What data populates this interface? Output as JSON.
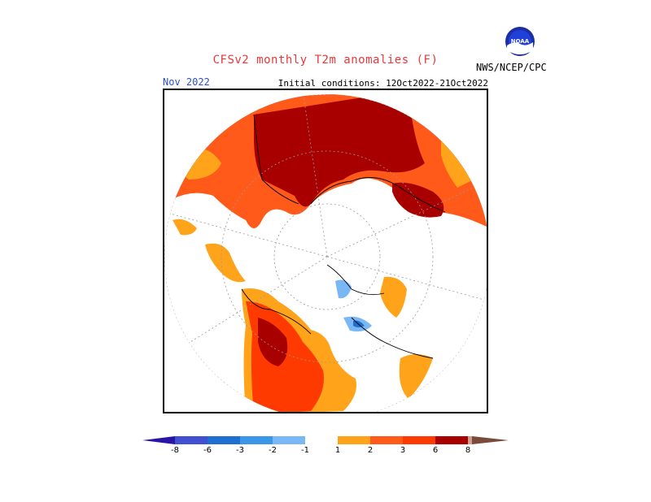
{
  "header": {
    "title": "CFSv2 monthly T2m anomalies (F)",
    "month": "Nov 2022",
    "initial_conditions": "Initial conditions: 12Oct2022-21Oct2022",
    "agency": "NWS/NCEP/CPC",
    "logo_icon": "noaa-logo-icon"
  },
  "colors": {
    "title": "#e8393b",
    "month": "#2b50c8",
    "c_m8": "#2a14a5",
    "c_m6": "#4050d0",
    "c_m3": "#1e6fd0",
    "c_m2": "#3c96e8",
    "c_m1": "#7ab8f5",
    "c_0": "#ffffff",
    "c_1": "#ffa31a",
    "c_2": "#ff5a1a",
    "c_3": "#ff3a00",
    "c_6": "#a80000",
    "c_8": "#c8a090",
    "c_over": "#7a4a3a"
  },
  "colorbar": {
    "tick_labels": [
      "-8",
      "-6",
      "-3",
      "-2",
      "-1",
      "1",
      "2",
      "3",
      "6",
      "8"
    ]
  }
}
